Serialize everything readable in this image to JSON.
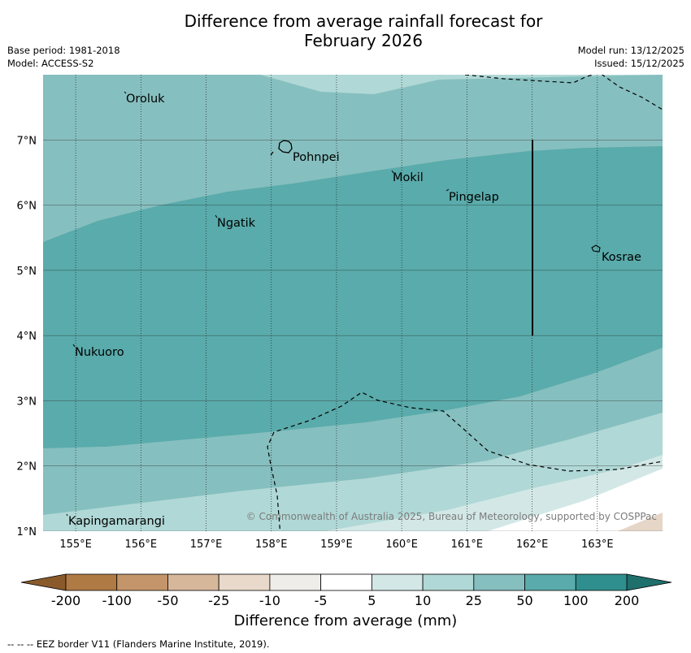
{
  "title": {
    "line1": "Difference from average rainfall forecast for",
    "line2": "February 2026"
  },
  "meta": {
    "base_period": "Base period: 1981-2018",
    "model": "Model: ACCESS-S2",
    "model_run": "Model run: 13/12/2025",
    "issued": "Issued: 15/12/2025"
  },
  "map": {
    "lon_range": [
      154.5,
      164.0
    ],
    "lat_range": [
      1.0,
      8.0
    ],
    "x_ticks": [
      "155°E",
      "156°E",
      "157°E",
      "158°E",
      "159°E",
      "160°E",
      "161°E",
      "162°E",
      "163°E"
    ],
    "y_ticks": [
      "1°N",
      "2°N",
      "3°N",
      "4°N",
      "5°N",
      "6°N",
      "7°N"
    ],
    "places": [
      "Oroluk",
      "Pohnpei",
      "Mokil",
      "Pingelap",
      "Ngatik",
      "Kosrae",
      "Nukuoro",
      "Kapingamarangi"
    ],
    "copyright": "© Commonwealth of Australia 2025, Bureau of Meteorology, supported by COSPPac",
    "colors": {
      "band_5_10": "#d3e8e6",
      "band_10_25": "#b0d8d6",
      "band_25_50": "#86bfbf",
      "band_50_100": "#5aabab",
      "dry_band": "#e5d6c8",
      "eez_line": "#000000"
    }
  },
  "colorbar": {
    "labels": [
      "-200",
      "-100",
      "-50",
      "-25",
      "-10",
      "-5",
      "5",
      "10",
      "25",
      "50",
      "100",
      "200"
    ],
    "colors": [
      "#8a5a2b",
      "#b07a45",
      "#c4956a",
      "#d7b79a",
      "#e8d9cb",
      "#efede9",
      "#ffffff",
      "#d3e8e6",
      "#b0d8d6",
      "#86bfbf",
      "#5aabab",
      "#2f8f8e",
      "#1f6f6d"
    ],
    "title": "Difference from average (mm)"
  },
  "footnote": "--  --  -- EEZ border V11 (Flanders Marine Institute, 2019)."
}
